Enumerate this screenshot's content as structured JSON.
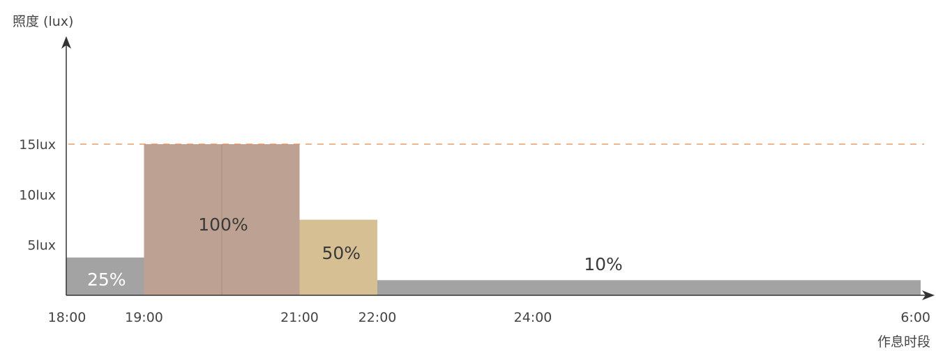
{
  "chart_data": {
    "type": "bar",
    "y_axis_label": "照度 (lux)",
    "x_axis_label": "作息时段",
    "y_ticks": [
      {
        "label": "5lux",
        "value": 5
      },
      {
        "label": "10lux",
        "value": 10
      },
      {
        "label": "15lux",
        "value": 15
      }
    ],
    "x_ticks": [
      {
        "label": "18:00",
        "hour": 18
      },
      {
        "label": "19:00",
        "hour": 19
      },
      {
        "label": "21:00",
        "hour": 21
      },
      {
        "label": "22:00",
        "hour": 22
      },
      {
        "label": "24:00",
        "hour": 24
      },
      {
        "label": "6:00",
        "hour": 30
      }
    ],
    "reference_line": {
      "value": 15,
      "color": "#e8884a",
      "style": "dashed"
    },
    "segments": [
      {
        "start": "18:00",
        "end": "19:00",
        "lux": 3.75,
        "label": "25%",
        "color": "#a3a3a3",
        "label_color": "#ffffff"
      },
      {
        "start": "19:00",
        "end": "21:00",
        "lux": 15,
        "label": "100%",
        "color": "#bda293",
        "label_color": "#3a3a3a"
      },
      {
        "start": "21:00",
        "end": "22:00",
        "lux": 7.5,
        "label": "50%",
        "color": "#d5bf93",
        "label_color": "#3a3a3a"
      },
      {
        "start": "22:00",
        "end": "6:00",
        "lux": 1.5,
        "label": "10%",
        "color": "#a3a3a3",
        "label_color": "#3a3a3a"
      }
    ],
    "axis_color": "#333333"
  }
}
